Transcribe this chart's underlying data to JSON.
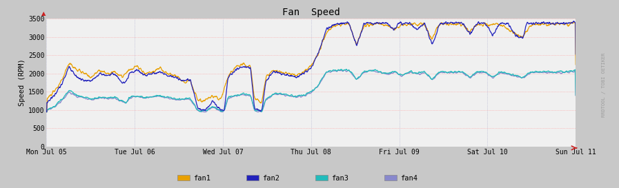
{
  "title": "Fan  Speed",
  "ylabel": "Speed (RPM)",
  "bg_color": "#c8c8c8",
  "plot_bg_color": "#f0f0f0",
  "grid_color_h": "#ff9999",
  "grid_color_v": "#aaaacc",
  "fan1_color": "#e8a000",
  "fan2_color": "#2222bb",
  "fan3_color": "#22bbbb",
  "fan4_color": "#8888cc",
  "legend_labels": [
    "fan1",
    "fan2",
    "fan3",
    "fan4"
  ],
  "watermark": "RRDTOOL / TOBI OETIKER",
  "xtick_labels": [
    "Mon Jul 05",
    "Tue Jul 06",
    "Wed Jul 07",
    "Thu Jul 08",
    "Fri Jul 09",
    "Sat Jul 10",
    "Sun Jul 11"
  ],
  "ytick_labels": [
    "0",
    "500",
    "1000",
    "1500",
    "2000",
    "2500",
    "3000",
    "3500"
  ],
  "ytick_values": [
    0,
    500,
    1000,
    1500,
    2000,
    2500,
    3000,
    3500
  ]
}
